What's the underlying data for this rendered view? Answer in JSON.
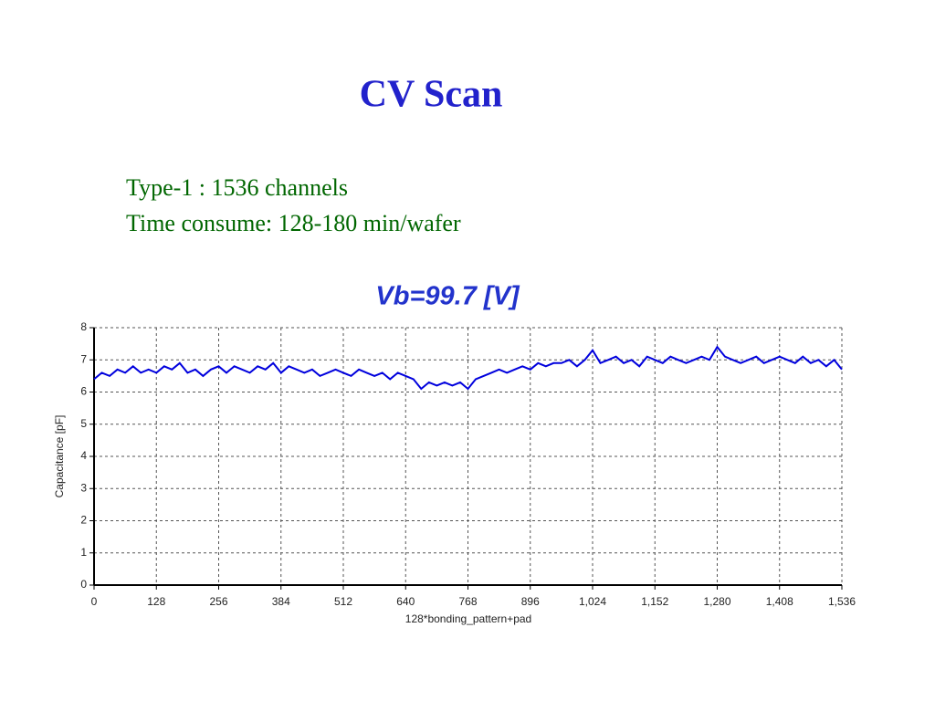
{
  "slide": {
    "title": "CV Scan",
    "lines": [
      "Type-1 : 1536 channels",
      "Time consume: 128-180 min/wafer"
    ]
  },
  "chart_data": {
    "type": "line",
    "title": "Vb=99.7 [V]",
    "x_label": "128*bonding_pattern+pad",
    "y_label": "Capacitance [pF]",
    "x": [
      0,
      16,
      32,
      48,
      64,
      80,
      96,
      112,
      128,
      144,
      160,
      176,
      192,
      208,
      224,
      240,
      256,
      272,
      288,
      304,
      320,
      336,
      352,
      368,
      384,
      400,
      416,
      432,
      448,
      464,
      480,
      496,
      512,
      528,
      544,
      560,
      576,
      592,
      608,
      624,
      640,
      656,
      672,
      688,
      704,
      720,
      736,
      752,
      768,
      784,
      800,
      816,
      832,
      848,
      864,
      880,
      896,
      912,
      928,
      944,
      960,
      976,
      992,
      1008,
      1024,
      1040,
      1056,
      1072,
      1088,
      1104,
      1120,
      1136,
      1152,
      1168,
      1184,
      1200,
      1216,
      1232,
      1248,
      1264,
      1280,
      1296,
      1312,
      1328,
      1344,
      1360,
      1376,
      1392,
      1408,
      1424,
      1440,
      1456,
      1472,
      1488,
      1504,
      1520,
      1536
    ],
    "values": [
      6.4,
      6.6,
      6.5,
      6.7,
      6.6,
      6.8,
      6.6,
      6.7,
      6.6,
      6.8,
      6.7,
      6.9,
      6.6,
      6.7,
      6.5,
      6.7,
      6.8,
      6.6,
      6.8,
      6.7,
      6.6,
      6.8,
      6.7,
      6.9,
      6.6,
      6.8,
      6.7,
      6.6,
      6.7,
      6.5,
      6.6,
      6.7,
      6.6,
      6.5,
      6.7,
      6.6,
      6.5,
      6.6,
      6.4,
      6.6,
      6.5,
      6.4,
      6.1,
      6.3,
      6.2,
      6.3,
      6.2,
      6.3,
      6.1,
      6.4,
      6.5,
      6.6,
      6.7,
      6.6,
      6.7,
      6.8,
      6.7,
      6.9,
      6.8,
      6.9,
      6.9,
      7.0,
      6.8,
      7.0,
      7.3,
      6.9,
      7.0,
      7.1,
      6.9,
      7.0,
      6.8,
      7.1,
      7.0,
      6.9,
      7.1,
      7.0,
      6.9,
      7.0,
      7.1,
      7.0,
      7.4,
      7.1,
      7.0,
      6.9,
      7.0,
      7.1,
      6.9,
      7.0,
      7.1,
      7.0,
      6.9,
      7.1,
      6.9,
      7.0,
      6.8,
      7.0,
      6.7
    ],
    "color": "#0000dd",
    "xlim": [
      0,
      1536
    ],
    "ylim": [
      0,
      8
    ],
    "xticks": [
      0,
      128,
      256,
      384,
      512,
      640,
      768,
      896,
      {
        "value": 1024,
        "label": "1,024"
      },
      {
        "value": 1152,
        "label": "1,152"
      },
      {
        "value": 1280,
        "label": "1,280"
      },
      {
        "value": 1408,
        "label": "1,408"
      },
      {
        "value": 1536,
        "label": "1,536"
      }
    ],
    "yticks": [
      0,
      1,
      2,
      3,
      4,
      5,
      6,
      7,
      8
    ],
    "grid": true
  }
}
